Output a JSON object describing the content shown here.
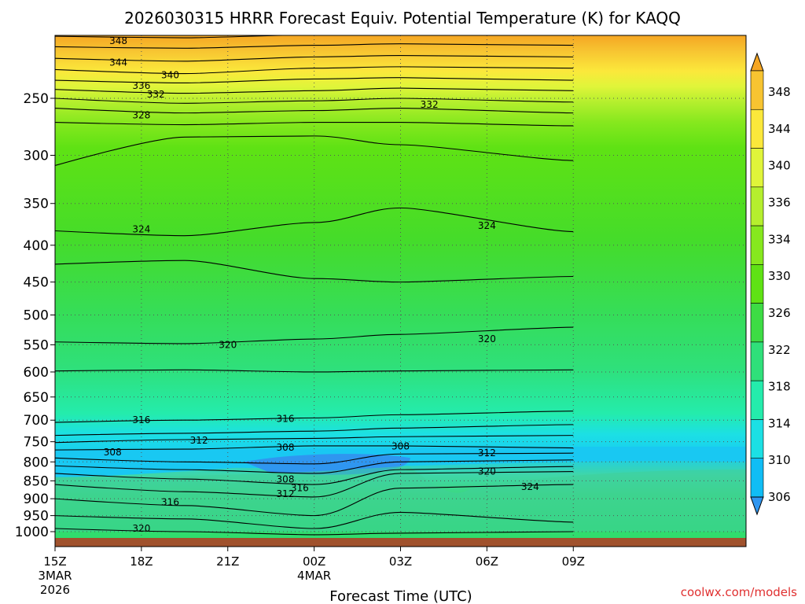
{
  "chart_data": {
    "type": "contour",
    "title": "2026030315 HRRR Forecast Equiv. Potential Temperature (K) for KAQQ",
    "xlabel": "Forecast Time (UTC)",
    "ylabel": "",
    "y_scale": "log",
    "y_inverted": true,
    "x_hours": [
      0,
      24
    ],
    "y_pressure_range": [
      1050,
      200
    ],
    "x_ticks": [
      {
        "hour": 0,
        "label": "15Z",
        "date": "3MAR",
        "year": "2026"
      },
      {
        "hour": 3,
        "label": "18Z"
      },
      {
        "hour": 6,
        "label": "21Z"
      },
      {
        "hour": 9,
        "label": "00Z",
        "date": "4MAR"
      },
      {
        "hour": 12,
        "label": "03Z"
      },
      {
        "hour": 15,
        "label": "06Z"
      },
      {
        "hour": 18,
        "label": "09Z"
      }
    ],
    "y_ticks": [
      250,
      300,
      350,
      400,
      450,
      500,
      550,
      600,
      650,
      700,
      750,
      800,
      850,
      900,
      950,
      1000
    ],
    "grid": true,
    "colorbar": {
      "labels": [
        348,
        344,
        340,
        336,
        334,
        330,
        326,
        322,
        318,
        314,
        310,
        306
      ],
      "colors": [
        "#f5a623",
        "#f7c431",
        "#fbe83b",
        "#e0f53a",
        "#b5ef2e",
        "#86e81e",
        "#5fe214",
        "#3ddc44",
        "#2fe07a",
        "#24ecac",
        "#1ce0e4",
        "#10bdf5",
        "#2f96f0"
      ]
    },
    "contour_levels": [
      306,
      308,
      312,
      316,
      320,
      324,
      328,
      332,
      336,
      340,
      344,
      348
    ],
    "contour_labels": [
      {
        "value": "348",
        "hour": 2.2,
        "p": 208
      },
      {
        "value": "344",
        "hour": 2.2,
        "p": 223
      },
      {
        "value": "340",
        "hour": 4.0,
        "p": 232
      },
      {
        "value": "336",
        "hour": 3.0,
        "p": 240
      },
      {
        "value": "332",
        "hour": 3.5,
        "p": 247
      },
      {
        "value": "332",
        "hour": 13.0,
        "p": 255
      },
      {
        "value": "328",
        "hour": 3.0,
        "p": 264
      },
      {
        "value": "324",
        "hour": 3.0,
        "p": 380
      },
      {
        "value": "324",
        "hour": 15.0,
        "p": 376
      },
      {
        "value": "320",
        "hour": 6.0,
        "p": 550
      },
      {
        "value": "320",
        "hour": 15.0,
        "p": 540
      },
      {
        "value": "316",
        "hour": 3.0,
        "p": 700
      },
      {
        "value": "316",
        "hour": 8.0,
        "p": 697
      },
      {
        "value": "312",
        "hour": 5.0,
        "p": 747
      },
      {
        "value": "308",
        "hour": 2.0,
        "p": 776
      },
      {
        "value": "308",
        "hour": 8.0,
        "p": 764
      },
      {
        "value": "308",
        "hour": 12.0,
        "p": 761
      },
      {
        "value": "312",
        "hour": 15.0,
        "p": 778
      },
      {
        "value": "320",
        "hour": 15.0,
        "p": 825
      },
      {
        "value": "324",
        "hour": 16.5,
        "p": 866
      },
      {
        "value": "308",
        "hour": 8.0,
        "p": 846
      },
      {
        "value": "312",
        "hour": 8.0,
        "p": 886
      },
      {
        "value": "316",
        "hour": 8.5,
        "p": 870
      },
      {
        "value": "316",
        "hour": 4.0,
        "p": 910
      },
      {
        "value": "320",
        "hour": 3.0,
        "p": 990
      }
    ],
    "surface": "ground"
  },
  "credit": "coolwx.com/models"
}
